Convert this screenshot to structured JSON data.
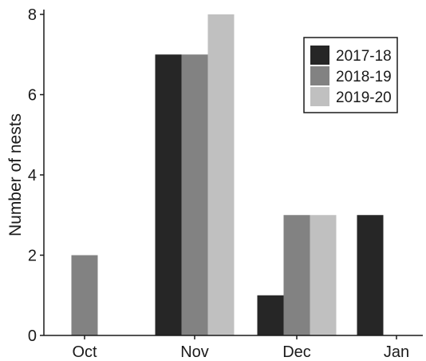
{
  "chart_data": {
    "type": "bar",
    "categories": [
      "Oct",
      "Nov",
      "Dec",
      "Jan"
    ],
    "series": [
      {
        "name": "2017-18",
        "color": "#262626",
        "values": [
          0,
          7,
          1,
          3
        ]
      },
      {
        "name": "2018-19",
        "color": "#828282",
        "values": [
          2,
          7,
          3,
          0
        ]
      },
      {
        "name": "2019-20",
        "color": "#c0c0c0",
        "values": [
          0,
          8,
          3,
          0
        ]
      }
    ],
    "ylabel": "Number of nests",
    "xlabel": "",
    "title": "",
    "ylim": [
      0,
      8
    ],
    "yticks": [
      "0",
      "2",
      "4",
      "6",
      "8"
    ],
    "grid": false,
    "legend_position": "top-right"
  }
}
